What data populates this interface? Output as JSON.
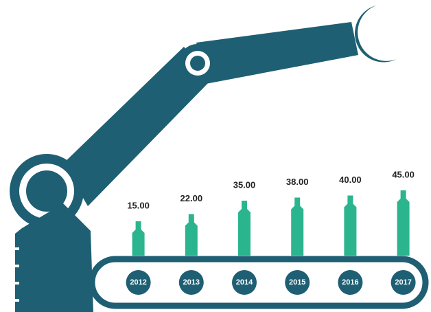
{
  "chart_data": {
    "type": "bar",
    "categories": [
      "2012",
      "2013",
      "2014",
      "2015",
      "2016",
      "2017"
    ],
    "values": [
      15,
      22,
      35,
      38,
      40,
      45
    ],
    "value_labels": [
      "15.00",
      "22.00",
      "35.00",
      "38.00",
      "40.00",
      "45.00"
    ],
    "color": "#2bb58f"
  }
}
